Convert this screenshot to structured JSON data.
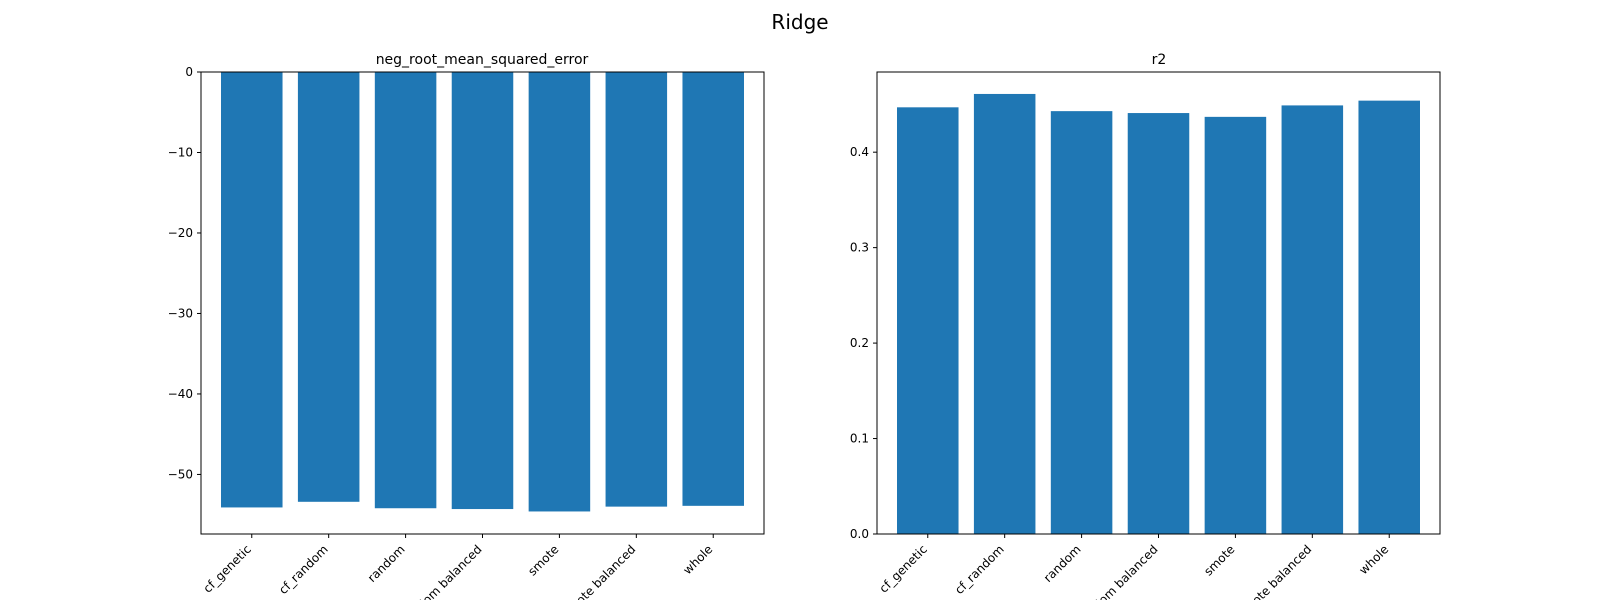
{
  "figure": {
    "suptitle": "Ridge",
    "bar_color": "#1f77b4"
  },
  "chart_data": [
    {
      "type": "bar",
      "title": "neg_root_mean_squared_error",
      "xlabel": "",
      "ylabel": "",
      "categories": [
        "cf_genetic",
        "cf_random",
        "random",
        "random balanced",
        "smote",
        "smote balanced",
        "whole"
      ],
      "values": [
        -54.1,
        -53.4,
        -54.2,
        -54.3,
        -54.6,
        -54.0,
        -53.9
      ],
      "ylim": [
        -57.4,
        0
      ],
      "yticks": [
        0,
        -10,
        -20,
        -30,
        -40,
        -50
      ],
      "ytick_labels": [
        "0",
        "−10",
        "−20",
        "−30",
        "−40",
        "−50"
      ],
      "grid": false
    },
    {
      "type": "bar",
      "title": "r2",
      "xlabel": "",
      "ylabel": "",
      "categories": [
        "cf_genetic",
        "cf_random",
        "random",
        "random balanced",
        "smote",
        "smote balanced",
        "whole"
      ],
      "values": [
        0.447,
        0.461,
        0.443,
        0.441,
        0.437,
        0.449,
        0.454
      ],
      "ylim": [
        0,
        0.484
      ],
      "yticks": [
        0,
        0.1,
        0.2,
        0.3,
        0.4
      ],
      "ytick_labels": [
        "0.0",
        "0.1",
        "0.2",
        "0.3",
        "0.4"
      ],
      "grid": false
    }
  ]
}
